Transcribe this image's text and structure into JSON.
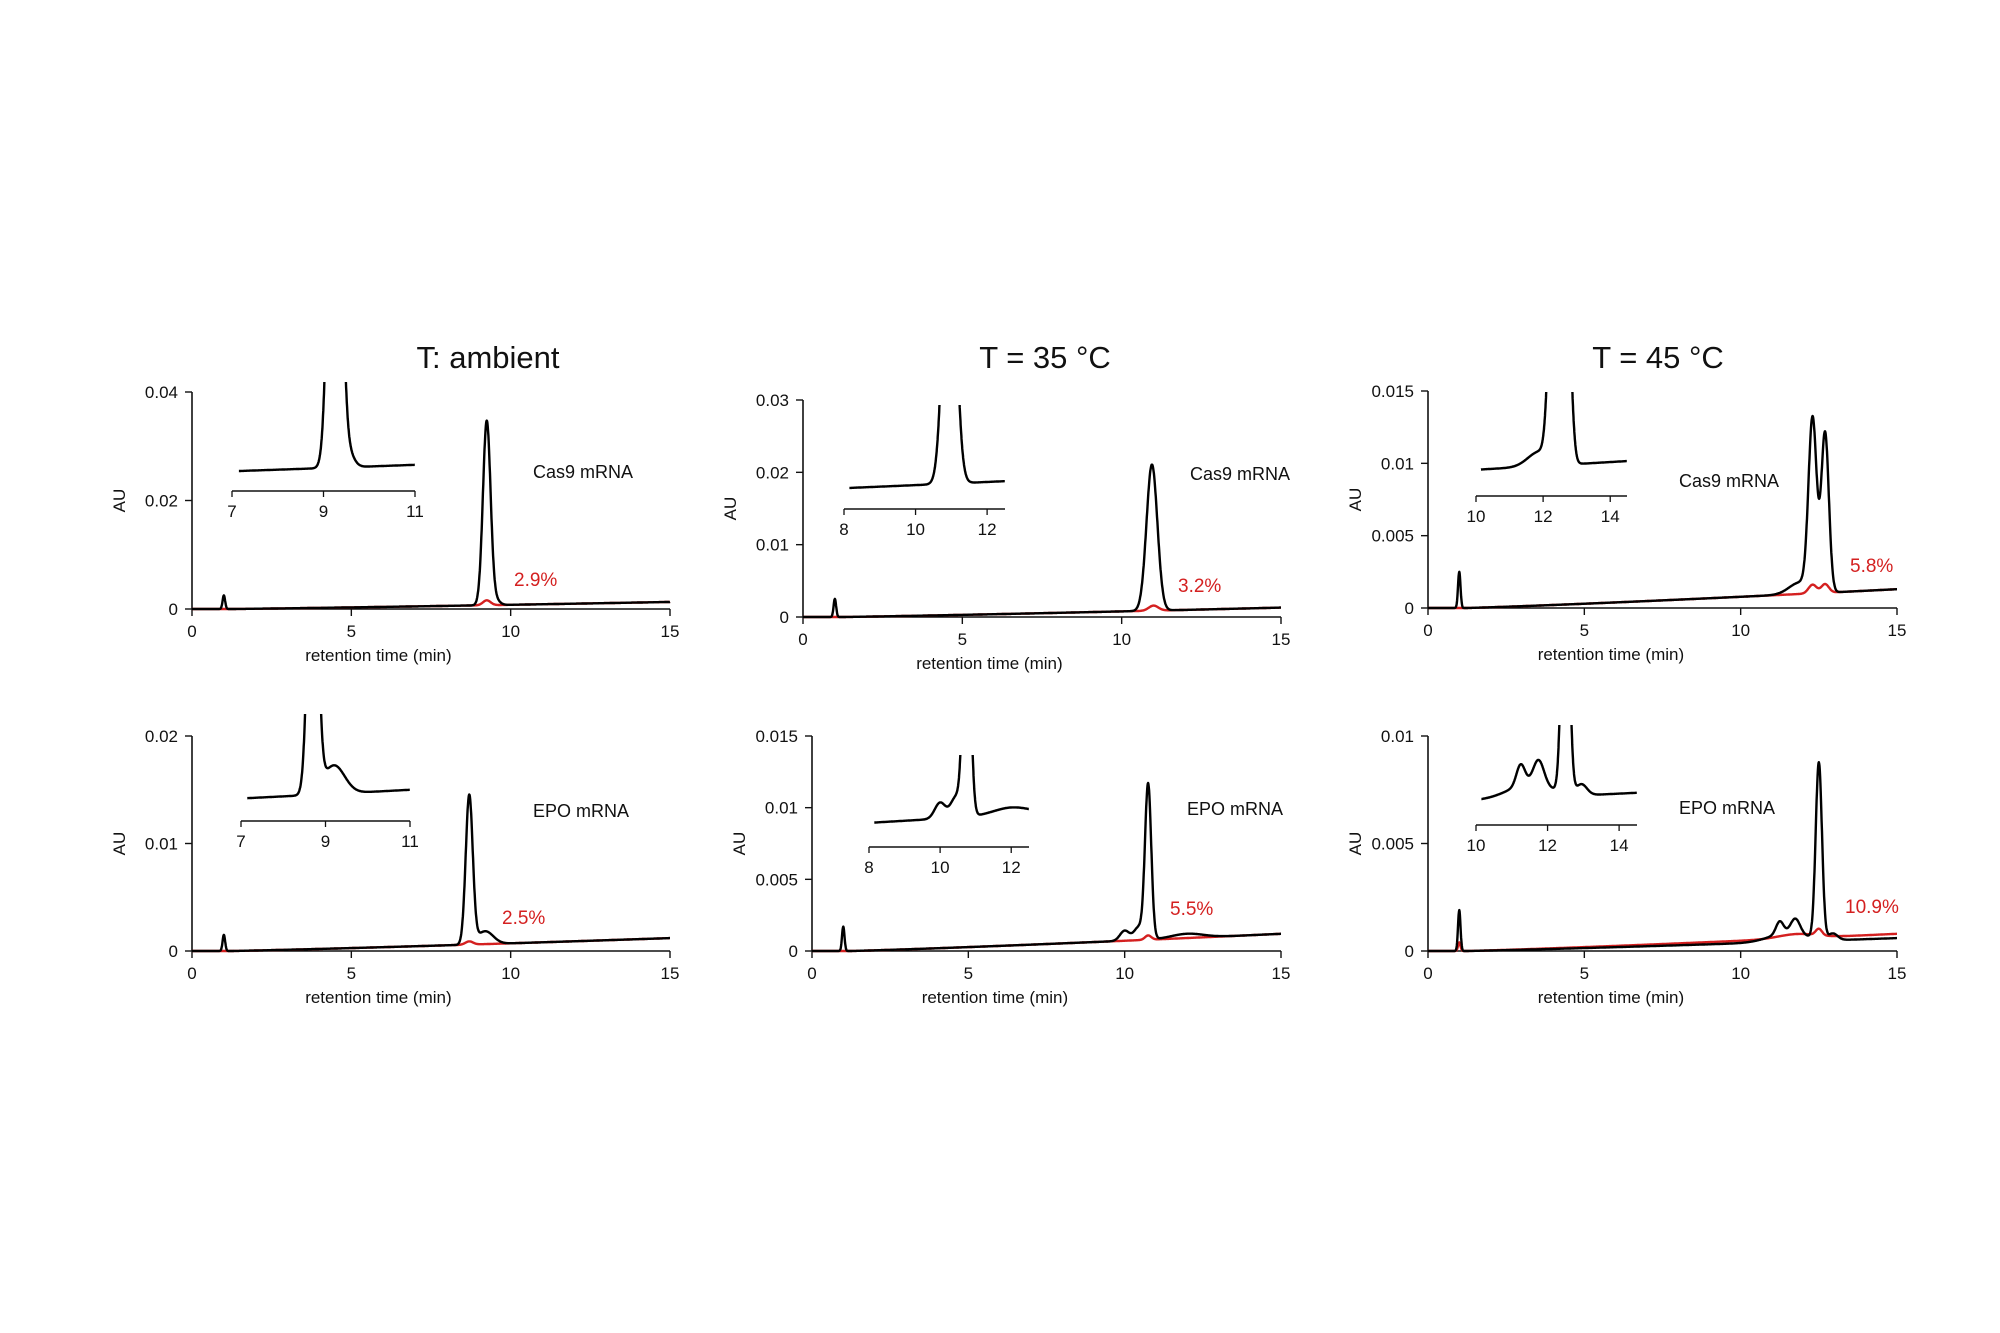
{
  "column_titles": [
    "T: ambient",
    "T = 35 °C",
    "T = 45 °C"
  ],
  "colors": {
    "untreated": "#000000",
    "treated": "#d42020"
  },
  "chart_data": [
    {
      "type": "line",
      "sample": "Cas9 mRNA",
      "percent_label": "2.9%",
      "xlabel": "retention time (min)",
      "ylabel": "AU",
      "xlim": [
        0,
        15
      ],
      "xticks": [
        0,
        5,
        10,
        15
      ],
      "ylim": [
        0,
        0.04
      ],
      "yticks": [
        "0",
        "0.02",
        "0.04"
      ],
      "ytick_values": [
        0,
        0.02,
        0.04
      ],
      "series": [
        {
          "color": "black",
          "baseline_end": 0.0013,
          "peaks": [
            [
              1.0,
              0.0025,
              0.04
            ],
            [
              9.25,
              0.034,
              0.12
            ],
            [
              9.55,
              0.0008,
              0.12
            ]
          ]
        },
        {
          "color": "red",
          "baseline_end": 0.0013,
          "peaks": [
            [
              9.25,
              0.0009,
              0.12
            ]
          ]
        }
      ],
      "inset": {
        "xlim": [
          7,
          11
        ],
        "xticks": [
          7,
          9,
          11
        ],
        "ylim": [
          0,
          0.006
        ]
      }
    },
    {
      "type": "line",
      "sample": "Cas9 mRNA",
      "percent_label": "3.2%",
      "xlabel": "retention time (min)",
      "ylabel": "AU",
      "xlim": [
        0,
        15
      ],
      "xticks": [
        0,
        5,
        10,
        15
      ],
      "ylim": [
        0,
        0.03
      ],
      "yticks": [
        "0",
        "0.01",
        "0.02",
        "0.03"
      ],
      "ytick_values": [
        0,
        0.01,
        0.02,
        0.03
      ],
      "series": [
        {
          "color": "black",
          "baseline_end": 0.0013,
          "peaks": [
            [
              1.0,
              0.0025,
              0.04
            ],
            [
              10.95,
              0.0202,
              0.17
            ]
          ]
        },
        {
          "color": "red",
          "baseline_end": 0.0013,
          "peaks": [
            [
              11.0,
              0.0007,
              0.15
            ]
          ]
        }
      ],
      "inset": {
        "xlim": [
          8,
          12.5
        ],
        "xticks": [
          8,
          10,
          12
        ],
        "ylim": [
          0,
          0.006
        ]
      }
    },
    {
      "type": "line",
      "sample": "Cas9 mRNA",
      "percent_label": "5.8%",
      "xlabel": "retention time (min)",
      "ylabel": "AU",
      "xlim": [
        0,
        15
      ],
      "xticks": [
        0,
        5,
        10,
        15
      ],
      "ylim": [
        0,
        0.015
      ],
      "yticks": [
        "0",
        "0.005",
        "0.01",
        "0.015"
      ],
      "ytick_values": [
        0,
        0.005,
        0.01,
        0.015
      ],
      "series": [
        {
          "color": "black",
          "baseline_end": 0.0013,
          "peaks": [
            [
              1.0,
              0.0025,
              0.04
            ],
            [
              12.3,
              0.0118,
              0.13
            ],
            [
              12.7,
              0.011,
              0.12
            ],
            [
              11.9,
              0.0008,
              0.35
            ]
          ]
        },
        {
          "color": "red",
          "baseline_end": 0.0013,
          "peaks": [
            [
              12.3,
              0.0006,
              0.13
            ],
            [
              12.7,
              0.0006,
              0.12
            ]
          ]
        }
      ],
      "inset": {
        "xlim": [
          10,
          14.5
        ],
        "xticks": [
          10,
          12,
          14
        ],
        "ylim": [
          0,
          0.005
        ]
      }
    },
    {
      "type": "line",
      "sample": "EPO mRNA",
      "percent_label": "2.5%",
      "xlabel": "retention time (min)",
      "ylabel": "AU",
      "xlim": [
        0,
        15
      ],
      "xticks": [
        0,
        5,
        10,
        15
      ],
      "ylim": [
        0,
        0.02
      ],
      "yticks": [
        "0",
        "0.01",
        "0.02"
      ],
      "ytick_values": [
        0,
        0.01,
        0.02
      ],
      "series": [
        {
          "color": "black",
          "baseline_end": 0.0012,
          "peaks": [
            [
              1.0,
              0.0015,
              0.04
            ],
            [
              8.7,
              0.0138,
              0.11
            ],
            [
              9.2,
              0.0012,
              0.25
            ]
          ]
        },
        {
          "color": "red",
          "baseline_end": 0.0012,
          "peaks": [
            [
              8.7,
              0.0003,
              0.12
            ]
          ]
        }
      ],
      "inset": {
        "xlim": [
          7,
          11
        ],
        "xticks": [
          7,
          9,
          11
        ],
        "ylim": [
          0,
          0.004
        ]
      }
    },
    {
      "type": "line",
      "sample": "EPO mRNA",
      "percent_label": "5.5%",
      "xlabel": "retention time (min)",
      "ylabel": "AU",
      "xlim": [
        0,
        15
      ],
      "xticks": [
        0,
        5,
        10,
        15
      ],
      "ylim": [
        0,
        0.015
      ],
      "yticks": [
        "0",
        "0.005",
        "0.01",
        "0.015"
      ],
      "ytick_values": [
        0,
        0.005,
        0.01,
        0.015
      ],
      "series": [
        {
          "color": "black",
          "baseline_end": 0.0012,
          "peaks": [
            [
              1.0,
              0.0017,
              0.04
            ],
            [
              10.75,
              0.0108,
              0.1
            ],
            [
              10.0,
              0.0007,
              0.15
            ],
            [
              10.45,
              0.0009,
              0.15
            ],
            [
              12.0,
              0.0003,
              0.5
            ]
          ]
        },
        {
          "color": "red",
          "baseline_end": 0.0012,
          "peaks": [
            [
              10.75,
              0.0003,
              0.1
            ]
          ]
        }
      ],
      "inset": {
        "xlim": [
          8,
          12.5
        ],
        "xticks": [
          8,
          10,
          12
        ],
        "ylim": [
          0,
          0.0035
        ]
      }
    },
    {
      "type": "line",
      "sample": "EPO mRNA",
      "percent_label": "10.9%",
      "xlabel": "retention time (min)",
      "ylabel": "AU",
      "xlim": [
        0,
        15
      ],
      "xticks": [
        0,
        5,
        10,
        15
      ],
      "ylim": [
        0,
        0.01
      ],
      "yticks": [
        "0",
        "0.005",
        "0.01"
      ],
      "ytick_values": [
        0,
        0.005,
        0.01
      ],
      "series": [
        {
          "color": "black",
          "baseline_end": 0.0006,
          "peaks": [
            [
              1.0,
              0.0019,
              0.04
            ],
            [
              12.5,
              0.0082,
              0.1
            ],
            [
              11.25,
              0.0006,
              0.12
            ],
            [
              11.75,
              0.0007,
              0.15
            ],
            [
              11.5,
              0.0004,
              0.6
            ],
            [
              12.95,
              0.0003,
              0.15
            ]
          ]
        },
        {
          "color": "red",
          "baseline_end": 0.0008,
          "peaks": [
            [
              1.0,
              0.0004,
              0.04
            ],
            [
              12.5,
              0.0003,
              0.1
            ],
            [
              11.8,
              0.0002,
              0.6
            ]
          ]
        }
      ],
      "inset": {
        "xlim": [
          10,
          14.5
        ],
        "xticks": [
          10,
          12,
          14
        ],
        "ylim": [
          0,
          0.0025
        ]
      }
    }
  ]
}
